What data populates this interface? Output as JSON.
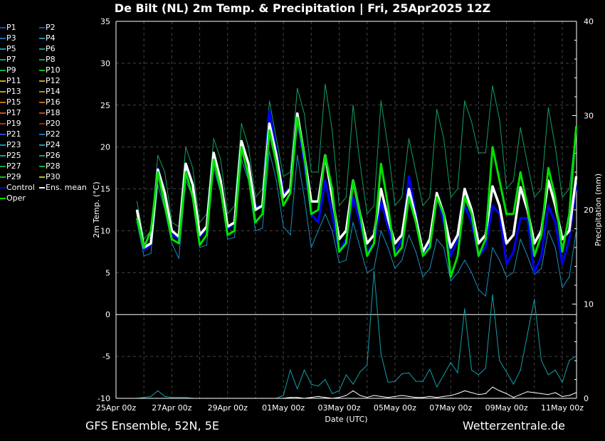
{
  "header": {
    "title": "De Bilt  (NL)  2m Temp. & Precipitation | Fri, 25Apr2025 12Z"
  },
  "footer": {
    "left": "GFS Ensemble, 52N, 5E",
    "right": "Wetterzentrale.de"
  },
  "legend": [
    {
      "label": "P1",
      "color": "#2040c8"
    },
    {
      "label": "P2",
      "color": "#2050c0"
    },
    {
      "label": "P3",
      "color": "#1a6cb8"
    },
    {
      "label": "P4",
      "color": "#1a90b8"
    },
    {
      "label": "P5",
      "color": "#10a0a8"
    },
    {
      "label": "P6",
      "color": "#10a080"
    },
    {
      "label": "P7",
      "color": "#10a068"
    },
    {
      "label": "P8",
      "color": "#10a850"
    },
    {
      "label": "P9",
      "color": "#10b030"
    },
    {
      "label": "P10",
      "color": "#10c010"
    },
    {
      "label": "P11",
      "color": "#b8b010"
    },
    {
      "label": "P12",
      "color": "#c0a810"
    },
    {
      "label": "P13",
      "color": "#c09810"
    },
    {
      "label": "P14",
      "color": "#c08810"
    },
    {
      "label": "P15",
      "color": "#c07010"
    },
    {
      "label": "P16",
      "color": "#c06810"
    },
    {
      "label": "P17",
      "color": "#c05810"
    },
    {
      "label": "P18",
      "color": "#c04818"
    },
    {
      "label": "P19",
      "color": "#a83020"
    },
    {
      "label": "P20",
      "color": "#a02010"
    },
    {
      "label": "P21",
      "color": "#2050c0"
    },
    {
      "label": "P22",
      "color": "#1a70c0"
    },
    {
      "label": "P23",
      "color": "#1890c0"
    },
    {
      "label": "P24",
      "color": "#10a0b0"
    },
    {
      "label": "P25",
      "color": "#10a090"
    },
    {
      "label": "P26",
      "color": "#10a870"
    },
    {
      "label": "P27",
      "color": "#10a050"
    },
    {
      "label": "P28",
      "color": "#10b040"
    },
    {
      "label": "P29",
      "color": "#10c020"
    },
    {
      "label": "P30",
      "color": "#c0c010"
    },
    {
      "label": "Control",
      "color": "#0000ff"
    },
    {
      "label": "Ens. mean",
      "color": "#ffffff"
    },
    {
      "label": "Oper",
      "color": "#00e000"
    }
  ],
  "chart_data": {
    "type": "line",
    "title": "De Bilt  (NL)  2m Temp. & Precipitation | Fri, 25Apr2025 12Z",
    "xlabel": "Date (UTC)",
    "ylabel": "2m Temp. (°C)",
    "ylabel_right": "Precipitation (mm)",
    "x_start": "25Apr 18z",
    "x_step_hours": 6,
    "x_range": [
      "25Apr 00z",
      "11May 12z"
    ],
    "x_ticks": [
      "25Apr 00z",
      "27Apr 00z",
      "29Apr 00z",
      "01May 00z",
      "03May 00z",
      "05May 00z",
      "07May 00z",
      "09May 00z",
      "11May 00z"
    ],
    "ylim": [
      -10,
      35
    ],
    "y_ticks": [
      -10,
      -5,
      0,
      5,
      10,
      15,
      20,
      25,
      30,
      35
    ],
    "ylim_right": [
      0,
      40
    ],
    "y_ticks_right": [
      0,
      10,
      20,
      30,
      40
    ],
    "grid": true,
    "legend_position": "left",
    "series": [
      {
        "name": "Ens. mean",
        "color": "#ffffff",
        "axis": "temp",
        "values": [
          12.5,
          8,
          8.5,
          17.3,
          14.5,
          10,
          9.3,
          18,
          15.5,
          9.5,
          10.5,
          19.3,
          16,
          10.5,
          11,
          20.7,
          18,
          12.5,
          13,
          22.8,
          19,
          14,
          15,
          24,
          19,
          13.5,
          13.5,
          19,
          14,
          9,
          10,
          16,
          12,
          8.5,
          9.5,
          15,
          11.5,
          8.5,
          9.5,
          15,
          11.5,
          7.5,
          9,
          14.5,
          12,
          8,
          9.5,
          15,
          12.5,
          8.5,
          9.5,
          15.3,
          13,
          8.5,
          9.5,
          15.2,
          12.5,
          8.5,
          10,
          16,
          13,
          9,
          10,
          16.5
        ]
      },
      {
        "name": "Control",
        "color": "#0000ff",
        "axis": "temp",
        "values": [
          12.5,
          7.7,
          8.3,
          17.5,
          14.5,
          9.5,
          9,
          17.8,
          15.5,
          9.3,
          10.3,
          19.3,
          16,
          10.3,
          10.8,
          20.5,
          18,
          12.8,
          13,
          24.3,
          19.5,
          14.5,
          15,
          23.5,
          18,
          12,
          11,
          16,
          12,
          7.5,
          9,
          14,
          11,
          7.5,
          8.5,
          13.5,
          10.5,
          7.5,
          9,
          16.5,
          12,
          7,
          8.5,
          14.5,
          11,
          7,
          9,
          13,
          11,
          7,
          8,
          13,
          12,
          6,
          7.5,
          11.5,
          11.5,
          5,
          7,
          13,
          11,
          6,
          9,
          15.5
        ]
      },
      {
        "name": "Oper",
        "color": "#00e000",
        "axis": "temp",
        "values": [
          11.5,
          8,
          10,
          17,
          13,
          9,
          8.5,
          17,
          14,
          8.3,
          9.5,
          18.5,
          15,
          9.5,
          10,
          20,
          16.5,
          11,
          12,
          22,
          18,
          13,
          14.5,
          23.5,
          19,
          12,
          12.5,
          19,
          15,
          7.5,
          8.5,
          16,
          12,
          7,
          8.5,
          18,
          13,
          7,
          8,
          14,
          11,
          7,
          8,
          14,
          12,
          4.5,
          7,
          14,
          12,
          7,
          9,
          20,
          16,
          12,
          12,
          17,
          13,
          7,
          9.5,
          17.5,
          14,
          7.5,
          12,
          22.5
        ]
      },
      {
        "name": "Ensemble max",
        "color": "#10a060",
        "axis": "temp",
        "values": [
          13.5,
          9,
          10,
          19,
          17,
          11,
          10.5,
          20,
          17.5,
          11,
          12,
          21,
          18.5,
          12,
          13,
          22.8,
          20,
          14,
          15,
          25.5,
          21,
          16.5,
          17,
          27,
          24,
          17,
          17,
          27.5,
          22,
          13,
          14,
          25,
          18,
          12,
          13,
          25.5,
          20,
          13,
          14,
          21,
          17,
          13,
          14,
          24.5,
          21,
          14,
          15,
          25.5,
          23,
          19.3,
          19.3,
          27.3,
          23.3,
          15,
          16,
          22.3,
          18,
          14,
          15,
          24.7,
          20,
          14,
          15,
          22.5
        ]
      },
      {
        "name": "Ensemble min",
        "color": "#1890c0",
        "axis": "temp",
        "values": [
          11,
          7,
          7.3,
          15.5,
          12.5,
          8.5,
          6.7,
          16,
          14,
          8,
          8.3,
          17.5,
          14.5,
          9,
          9.2,
          18.5,
          16,
          10,
          10.3,
          19.5,
          16,
          10.5,
          9.5,
          19,
          14,
          8,
          10,
          12,
          10,
          6.2,
          6.5,
          11,
          8,
          5,
          5.5,
          10,
          8,
          5.5,
          6.5,
          9.5,
          7.5,
          4.5,
          5.5,
          9,
          8,
          4,
          5,
          6.5,
          5,
          3,
          2.2,
          8,
          6.5,
          4.5,
          5,
          9,
          7,
          4.8,
          5.5,
          10,
          8,
          3.2,
          4.5,
          10
        ]
      },
      {
        "name": "Precip ens. mean",
        "color": "#ffffff",
        "axis": "precip",
        "values": [
          0,
          0,
          0,
          0,
          0,
          0,
          0,
          0,
          0,
          0,
          0,
          0,
          0,
          0,
          0,
          0,
          0,
          0,
          0,
          0,
          0,
          0,
          0.1,
          0.1,
          0,
          0.1,
          0.2,
          0.1,
          0,
          0.1,
          0.3,
          0.8,
          0.3,
          0.1,
          0.3,
          0.2,
          0.1,
          0.2,
          0.3,
          0.2,
          0.1,
          0.1,
          0.2,
          0.1,
          0.2,
          0.3,
          0.5,
          0.8,
          0.6,
          0.4,
          0.5,
          1.2,
          0.8,
          0.5,
          0.1,
          0.4,
          0.7,
          0.6,
          0.5,
          0.4,
          0.6,
          0.2,
          0.3,
          0.6
        ]
      },
      {
        "name": "Precip member max",
        "color": "#10a0a8",
        "axis": "precip",
        "values": [
          0,
          0.1,
          0.2,
          0.8,
          0.2,
          0.1,
          0.1,
          0.1,
          0,
          0,
          0,
          0,
          0,
          0,
          0,
          0,
          0,
          0,
          0,
          0,
          0,
          0.3,
          3,
          1,
          3,
          1.5,
          1.3,
          2,
          0.5,
          0.8,
          2.5,
          1.5,
          2.8,
          3.5,
          13.5,
          4.7,
          1.7,
          1.8,
          2.6,
          2.7,
          1.8,
          1.8,
          3.1,
          1.2,
          2.5,
          3.8,
          2.7,
          9.5,
          3,
          2.5,
          3.2,
          11,
          4,
          2.8,
          1.5,
          3,
          6.8,
          10.5,
          4,
          2.5,
          3,
          1.7,
          4,
          4.5
        ]
      }
    ]
  }
}
